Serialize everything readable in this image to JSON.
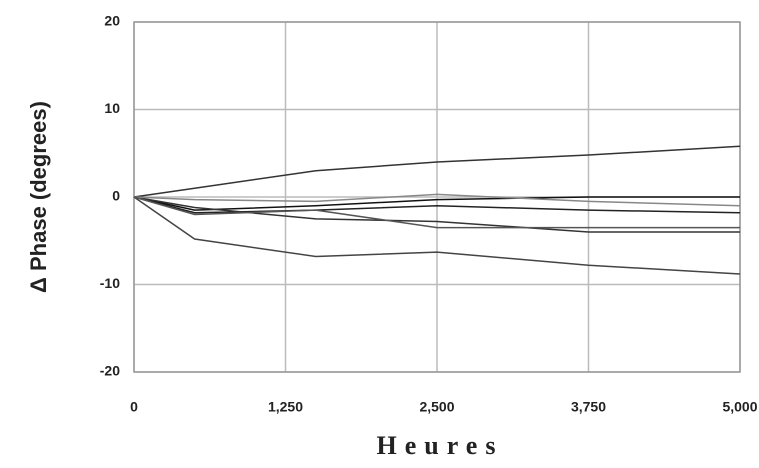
{
  "chart_data": {
    "type": "line",
    "y_label": "Δ Phase (degrees)",
    "x_label": "Heures",
    "x": [
      0,
      500,
      1500,
      2500,
      3750,
      5000
    ],
    "series": [
      {
        "color": "#333333",
        "values": [
          0,
          1,
          3,
          4,
          4.8,
          5.8
        ]
      },
      {
        "color": "#444444",
        "values": [
          0,
          -4.8,
          -6.8,
          -6.3,
          -7.8,
          -8.8
        ]
      },
      {
        "color": "#111111",
        "values": [
          0,
          -1.5,
          -1,
          -0.3,
          0,
          0
        ]
      },
      {
        "color": "#222222",
        "values": [
          0,
          -1.8,
          -1.5,
          -1,
          -1.5,
          -1.8
        ]
      },
      {
        "color": "#333333",
        "values": [
          0,
          -1.2,
          -2.5,
          -2.8,
          -4,
          -4
        ]
      },
      {
        "color": "#888888",
        "values": [
          0,
          -0.3,
          -0.5,
          0.3,
          -0.5,
          -1
        ]
      },
      {
        "color": "#555555",
        "values": [
          0,
          -2,
          -1.5,
          -3.5,
          -3.5,
          -3.5
        ]
      }
    ],
    "xlim": [
      0,
      5000
    ],
    "xticks": [
      0,
      {
        "value": 1250,
        "label": "1,250"
      },
      {
        "value": 2500,
        "label": "2,500"
      },
      {
        "value": 3750,
        "label": "3,750"
      },
      {
        "value": 5000,
        "label": "5,000"
      }
    ],
    "ylim": [
      -20,
      20
    ],
    "yticks": [
      -20,
      -10,
      0,
      10,
      20
    ],
    "grid": true
  }
}
